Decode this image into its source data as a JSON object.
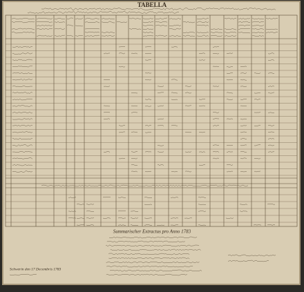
{
  "header": {
    "title": "TABELLA"
  },
  "summary": {
    "heading": "Summarischer Extractus pro Anno 1783"
  },
  "footer": {
    "place_date": "Schwerin den 17 Decembris 1783"
  }
}
